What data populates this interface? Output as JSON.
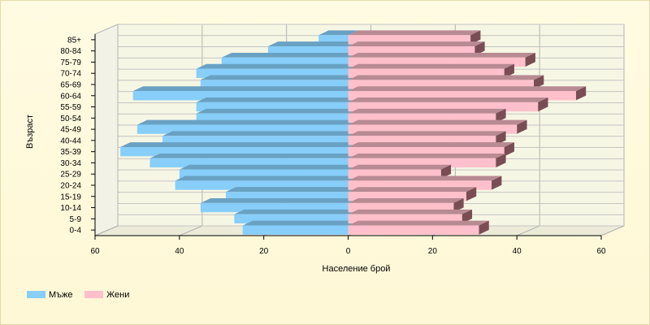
{
  "chart_data": {
    "type": "bar",
    "orientation": "horizontal-mirrored",
    "title": "",
    "xlabel": "Население брой",
    "ylabel": "Възраст",
    "xlim": [
      -60,
      60
    ],
    "x_ticks": [
      -60,
      -40,
      -20,
      0,
      20,
      40,
      60
    ],
    "x_tick_labels": [
      "60",
      "40",
      "20",
      "0",
      "20",
      "40",
      "60"
    ],
    "grid": true,
    "legend_position": "bottom-left",
    "categories": [
      "85+",
      "80-84",
      "75-79",
      "70-74",
      "65-69",
      "60-64",
      "55-59",
      "50-54",
      "45-49",
      "40-44",
      "35-39",
      "30-34",
      "25-29",
      "20-24",
      "15-19",
      "10-14",
      "5-9",
      "0-4"
    ],
    "series": [
      {
        "name": "Мъже",
        "color": "#87cefa",
        "values": [
          -7,
          -19,
          -30,
          -36,
          -35,
          -51,
          -36,
          -36,
          -50,
          -44,
          -54,
          -47,
          -40,
          -41,
          -29,
          -35,
          -27,
          -25
        ]
      },
      {
        "name": "Жени",
        "color": "#ffc0cb",
        "values": [
          29,
          30,
          42,
          37,
          44,
          54,
          45,
          35,
          40,
          35,
          37,
          35,
          22,
          34,
          28,
          25,
          27,
          31
        ]
      }
    ]
  }
}
